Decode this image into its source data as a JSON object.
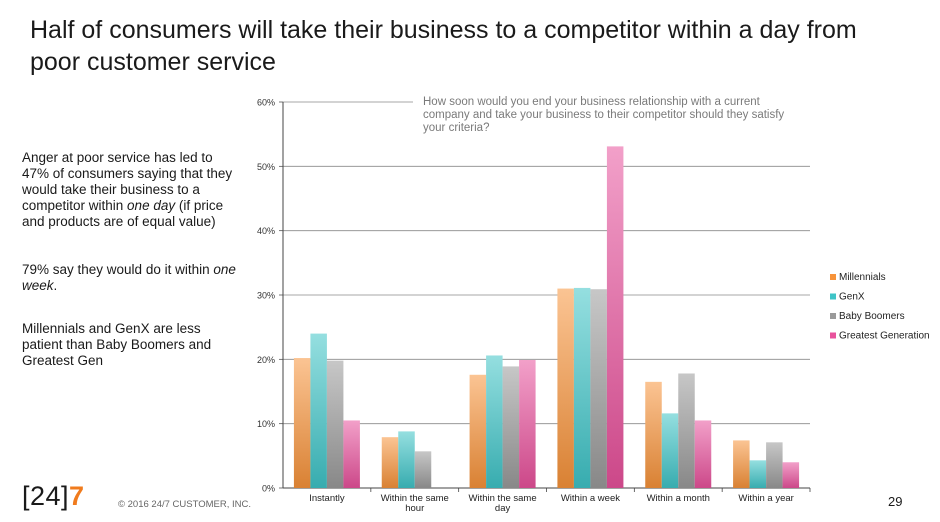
{
  "slide": {
    "title": "Half of consumers will take their business to a competitor within a day from poor customer service",
    "bullet1_a": "Anger at poor service has led to 47% of consumers saying that they would take their business to a competitor within ",
    "bullet1_em": "one day",
    "bullet1_b": " (if price and products are of equal value)",
    "bullet2_a": "79% say they would do it within ",
    "bullet2_em": "one week",
    "bullet2_b": ".",
    "bullet3": "Millennials and GenX are less patient than Baby Boomers and Greatest Gen",
    "logo_a": "[24]",
    "logo_b": "7",
    "copyright": "© 2016  24/7 CUSTOMER, INC.",
    "page_number": "29"
  },
  "chart_data": {
    "type": "bar",
    "title": "How soon would you end your business relationship with a current company and take your business to their competitor should they satisfy your criteria?",
    "title_lines": [
      "How soon would you end your business relationship with a current",
      "company and take your business to their competitor should they satisfy",
      "your criteria?"
    ],
    "categories": [
      "Instantly",
      "Within the same hour",
      "Within the same day",
      "Within a week",
      "Within a month",
      "Within a year"
    ],
    "category_lines": [
      [
        "Instantly"
      ],
      [
        "Within the same",
        "hour"
      ],
      [
        "Within the same",
        "day"
      ],
      [
        "Within a week"
      ],
      [
        "Within a month"
      ],
      [
        "Within a year"
      ]
    ],
    "series": [
      {
        "name": "Millennials",
        "values": [
          20.2,
          7.9,
          17.6,
          31.0,
          16.5,
          7.4
        ]
      },
      {
        "name": "GenX",
        "values": [
          24.0,
          8.8,
          20.6,
          31.1,
          11.6,
          4.3
        ]
      },
      {
        "name": "Baby Boomers",
        "values": [
          19.8,
          5.7,
          18.9,
          30.9,
          17.8,
          7.1
        ]
      },
      {
        "name": "Greatest Generation",
        "values": [
          10.5,
          0,
          19.9,
          53.1,
          10.5,
          4.0
        ]
      }
    ],
    "colors": [
      "#f7933a",
      "#3ec4c7",
      "#9a9a9a",
      "#e8529c"
    ],
    "ylim": [
      0,
      60
    ],
    "yticks": [
      "0%",
      "10%",
      "20%",
      "30%",
      "40%",
      "50%",
      "60%"
    ],
    "grid": true,
    "legend_position": "right"
  }
}
